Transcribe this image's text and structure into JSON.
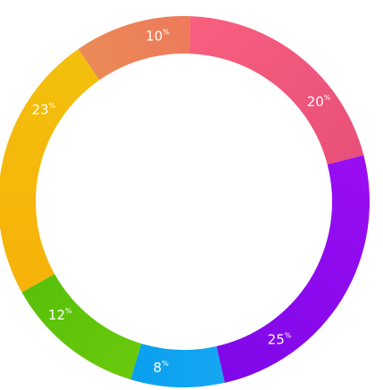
{
  "chart_data": {
    "type": "pie",
    "variant": "donut",
    "title": "",
    "legend": "none",
    "slices": [
      {
        "value": 20,
        "label": "20",
        "unit": "%",
        "color_from": "#f85f7e",
        "color_to": "#e8507a"
      },
      {
        "value": 25,
        "label": "25",
        "unit": "%",
        "color_from": "#9a0df3",
        "color_to": "#7f08e8"
      },
      {
        "value": 8,
        "label": "8",
        "unit": "%",
        "color_from": "#16a6f2",
        "color_to": "#0aa0ee"
      },
      {
        "value": 12,
        "label": "12",
        "unit": "%",
        "color_from": "#6ac90c",
        "color_to": "#57c00a"
      },
      {
        "value": 23,
        "label": "23",
        "unit": "%",
        "color_from": "#f7b20a",
        "color_to": "#f2c00c"
      },
      {
        "value": 10,
        "label": "10",
        "unit": "%",
        "color_from": "#ea8a55",
        "color_to": "#ee7a5c"
      }
    ]
  }
}
